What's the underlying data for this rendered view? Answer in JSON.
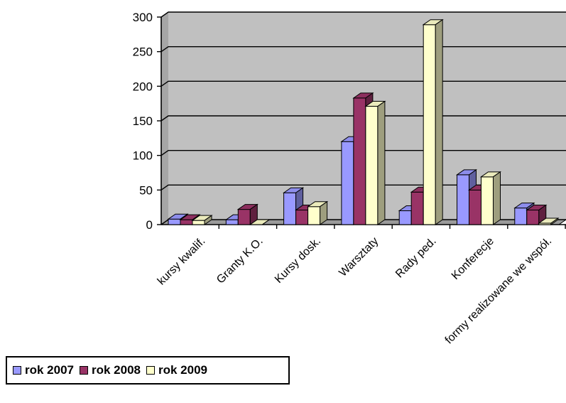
{
  "chart_data": {
    "type": "bar",
    "categories": [
      "kursy kwalif.",
      "Granty K.O.",
      "Kursy dosk.",
      "Warsztaty",
      "Rady ped.",
      "Konferecje",
      "formy realizowane we współ."
    ],
    "series": [
      {
        "name": "rok 2007",
        "color": "#9999FF",
        "values": [
          8,
          7,
          46,
          120,
          20,
          72,
          24
        ]
      },
      {
        "name": "rok 2008",
        "color": "#993366",
        "values": [
          7,
          22,
          21,
          183,
          47,
          50,
          21
        ]
      },
      {
        "name": "rok 2009",
        "color": "#FFFFCC",
        "values": [
          6,
          0,
          26,
          171,
          289,
          69,
          2
        ]
      }
    ],
    "yticks": [
      "0",
      "50",
      "100",
      "150",
      "200",
      "250",
      "300"
    ],
    "ylim": [
      0,
      300
    ],
    "grid": true,
    "plot_background": "#C0C0C0",
    "legend_position": "bottom-left",
    "three_d": true
  }
}
